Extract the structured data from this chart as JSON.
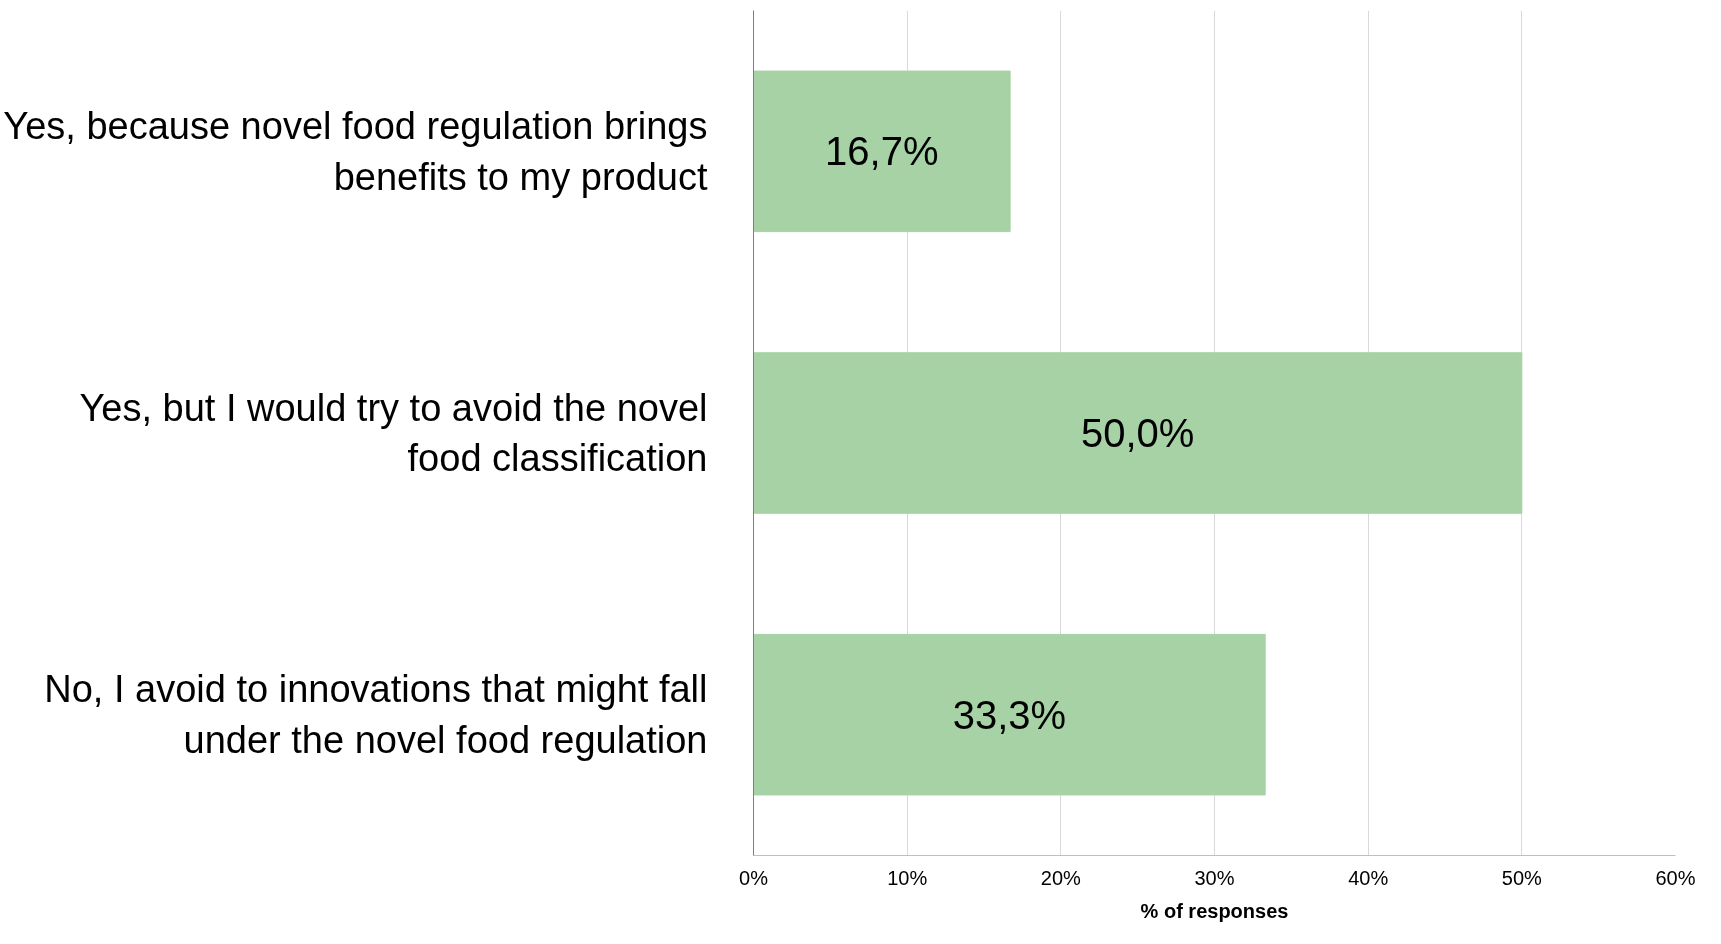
{
  "chart_data": {
    "type": "bar",
    "orientation": "horizontal",
    "xlabel": "% of responses",
    "categories": [
      "Yes, because novel food regulation brings benefits to my product",
      "Yes, but I would try to avoid the novel food classification",
      "No, I avoid to innovations that might fall under the novel food regulation"
    ],
    "values": [
      16.7,
      50.0,
      33.3
    ],
    "value_labels": [
      "16,7%",
      "50,0%",
      "33,3%"
    ],
    "color": "#a6d2a6",
    "xlim": [
      0,
      60
    ],
    "xticks": [
      {
        "value": 0,
        "label": "0%"
      },
      {
        "value": 10,
        "label": "10%"
      },
      {
        "value": 20,
        "label": "20%"
      },
      {
        "value": 30,
        "label": "30%"
      },
      {
        "value": 40,
        "label": "40%"
      },
      {
        "value": 50,
        "label": "50%"
      },
      {
        "value": 60,
        "label": "60%"
      }
    ],
    "grid": "x"
  }
}
